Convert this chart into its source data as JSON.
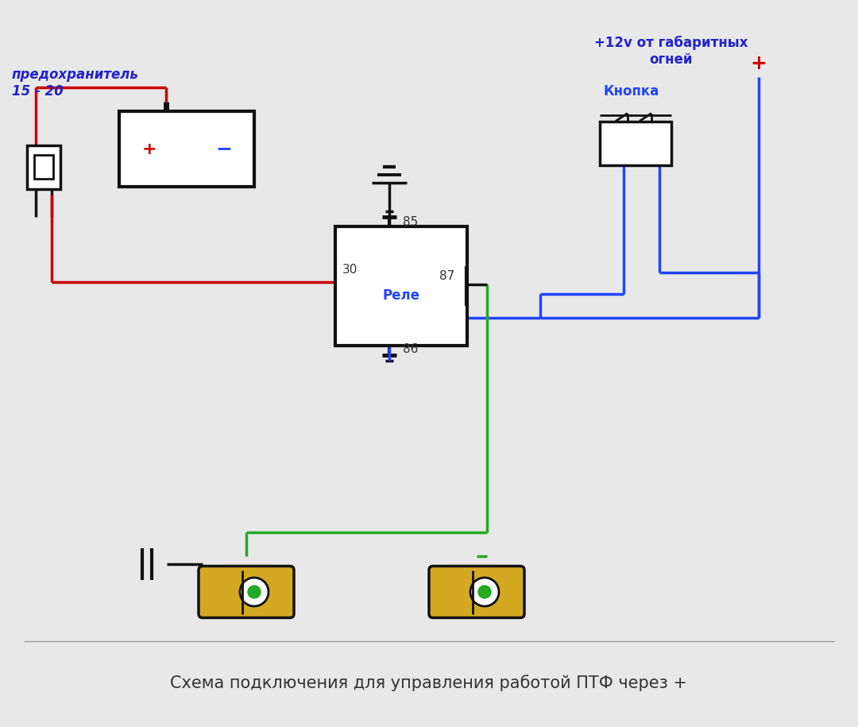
{
  "bg_color": "#e8e8e8",
  "title_text": "Схема подключения для управления работой ПТФ через +",
  "title_color": "#333333",
  "title_fontsize": 15,
  "fuse_label": "предохранитель\n15 - 20",
  "fuse_label_color": "#2222cc",
  "battery_plus": "+",
  "battery_minus": "−",
  "relay_label": "Реле",
  "relay_label_color": "#2244ff",
  "relay_pins": [
    "85",
    "30",
    "87",
    "86"
  ],
  "pin_color": "#333333",
  "top_label": "+12v от габаритных\nогней",
  "top_label_color": "#2222cc",
  "button_label": "Кнопка",
  "button_label_color": "#2244ff",
  "plus_sign_color": "#cc0000",
  "wire_red": "#cc0000",
  "wire_blue": "#2244ff",
  "wire_green": "#22aa22",
  "wire_black": "#111111",
  "component_black": "#111111"
}
